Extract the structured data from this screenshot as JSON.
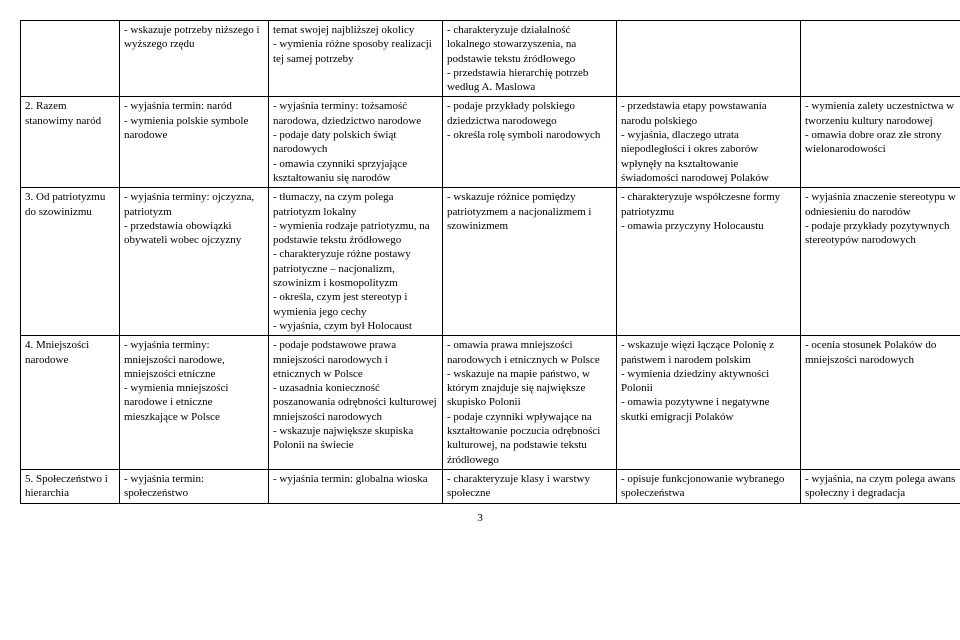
{
  "page_number": "3",
  "rows": [
    {
      "c1": "",
      "c2": "- wskazuje potrzeby niższego i wyższego rzędu",
      "c3": "temat swojej najbliższej okolicy\n- wymienia różne sposoby realizacji tej samej potrzeby",
      "c4": "- charakteryzuje działalność lokalnego stowarzyszenia, na podstawie tekstu źródłowego\n- przedstawia hierarchię potrzeb według A. Maslowa",
      "c5": "",
      "c6": ""
    },
    {
      "c1": "2. Razem stanowimy naród",
      "c2": "- wyjaśnia termin: naród\n- wymienia polskie symbole narodowe",
      "c3": "- wyjaśnia terminy: tożsamość narodowa, dziedzictwo narodowe\n- podaje daty polskich świąt narodowych\n- omawia czynniki sprzyjające kształtowaniu się narodów",
      "c4": "- podaje przykłady polskiego dziedzictwa narodowego\n- określa rolę symboli narodowych",
      "c5": "- przedstawia etapy powstawania narodu polskiego\n- wyjaśnia, dlaczego utrata niepodległości i okres zaborów wpłynęły na kształtowanie świadomości narodowej Polaków",
      "c6": "- wymienia zalety uczestnictwa w tworzeniu kultury narodowej\n- omawia dobre oraz złe strony wielonarodowości"
    },
    {
      "c1": "3. Od patriotyzmu do szowinizmu",
      "c2": "- wyjaśnia terminy: ojczyzna, patriotyzm\n- przedstawia obowiązki obywateli wobec ojczyzny",
      "c3": "- tłumaczy, na czym polega patriotyzm lokalny\n- wymienia rodzaje patriotyzmu, na podstawie tekstu źródłowego\n- charakteryzuje różne postawy patriotyczne – nacjonalizm, szowinizm i kosmopolityzm\n- określa, czym jest stereotyp i wymienia jego cechy\n- wyjaśnia, czym był Holocaust",
      "c4": "- wskazuje różnice pomiędzy patriotyzmem a nacjonalizmem i szowinizmem",
      "c5": "- charakteryzuje współczesne formy patriotyzmu\n- omawia przyczyny Holocaustu",
      "c6": "- wyjaśnia znaczenie stereotypu w odniesieniu do narodów\n- podaje przykłady pozytywnych stereotypów narodowych"
    },
    {
      "c1": "4. Mniejszości narodowe",
      "c2": "- wyjaśnia terminy: mniejszości narodowe, mniejszości etniczne\n- wymienia mniejszości narodowe i etniczne mieszkające w Polsce",
      "c3": "- podaje podstawowe prawa mniejszości narodowych i etnicznych w Polsce\n- uzasadnia konieczność poszanowania odrębności kulturowej mniejszości narodowych\n- wskazuje największe skupiska Polonii na świecie",
      "c4": "- omawia prawa mniejszości narodowych i etnicznych w Polsce\n- wskazuje na mapie państwo, w którym znajduje się największe skupisko Polonii\n- podaje czynniki wpływające na kształtowanie poczucia odrębności kulturowej, na podstawie tekstu źródłowego",
      "c5": "- wskazuje więzi łączące Polonię z państwem i narodem polskim\n- wymienia dziedziny aktywności Polonii\n- omawia pozytywne i negatywne skutki emigracji Polaków",
      "c6": "- ocenia stosunek Polaków do mniejszości narodowych"
    },
    {
      "c1": "5. Społeczeństwo i hierarchia",
      "c2": "- wyjaśnia termin: społeczeństwo",
      "c3": "- wyjaśnia termin: globalna wioska",
      "c4": "- charakteryzuje klasy i warstwy społeczne",
      "c5": "- opisuje funkcjonowanie wybranego społeczeństwa",
      "c6": "- wyjaśnia, na czym polega awans społeczny i degradacja"
    }
  ]
}
